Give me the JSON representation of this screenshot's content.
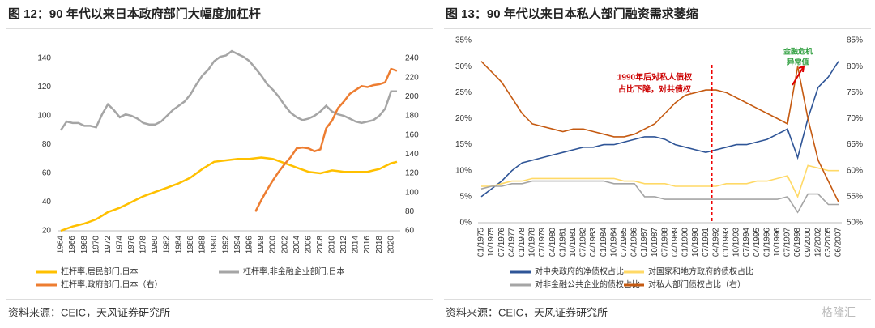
{
  "chart_data": [
    {
      "type": "line",
      "title": "图 12：90 年代以来日本政府部门大幅度加杠杆",
      "source": "资料来源：CEIC，天风证券研究所",
      "categories": [
        "1964",
        null,
        "1966",
        null,
        "1968",
        null,
        "1970",
        null,
        "1972",
        null,
        "1974",
        null,
        "1976",
        null,
        "1978",
        null,
        "1980",
        null,
        "1982",
        null,
        "1984",
        null,
        "1986",
        null,
        "1988",
        null,
        "1990",
        null,
        "1992",
        null,
        "1994",
        null,
        "1996",
        null,
        "1998",
        null,
        "2000",
        null,
        "2002",
        null,
        "2004",
        null,
        "2006",
        null,
        "2008",
        null,
        "2010",
        null,
        "2012",
        null,
        "2014",
        null,
        "2016",
        null,
        "2018",
        null,
        "2020",
        null
      ],
      "ylim": [
        20,
        140
      ],
      "yticks": [
        20,
        40,
        60,
        80,
        100,
        120,
        140
      ],
      "y2lim": [
        60,
        240
      ],
      "y2ticks": [
        60,
        80,
        100,
        120,
        140,
        160,
        180,
        200,
        220,
        240
      ],
      "series": [
        {
          "name": "杠杆率:居民部门:日本",
          "color": "#FFC000",
          "values": [
            20,
            21.5,
            23,
            24,
            25,
            26.5,
            28,
            30.5,
            33,
            34.5,
            36,
            38,
            40,
            42,
            44,
            45.5,
            47,
            48.5,
            50,
            51.5,
            53,
            55,
            57,
            60,
            63,
            65.5,
            68,
            68.5,
            69,
            69.5,
            70,
            70,
            70,
            70.5,
            71,
            70.5,
            70,
            68.5,
            67,
            65.5,
            64,
            62.5,
            61,
            60.5,
            60,
            61,
            62,
            61.5,
            61,
            61,
            61,
            61,
            61,
            62,
            63,
            65,
            67,
            68
          ]
        },
        {
          "name": "杠杆率:非金融企业部门:日本",
          "color": "#A5A5A5",
          "values": [
            90,
            96,
            95,
            95,
            93,
            93,
            92,
            101,
            108,
            104,
            99,
            101,
            100,
            98,
            95,
            94,
            94,
            96,
            100,
            104,
            107,
            110,
            115,
            122,
            128,
            132,
            138,
            141,
            142,
            145,
            143,
            141,
            138,
            133,
            128,
            122,
            118,
            113,
            107,
            102,
            99,
            97,
            98,
            100,
            103,
            107,
            103,
            101,
            100,
            98,
            96,
            95,
            96,
            97,
            100,
            105,
            117,
            117
          ]
        },
        {
          "name": "杠杆率:政府部门:日本（右）",
          "color": "#ED7D31",
          "axis": "y2",
          "values": [
            null,
            null,
            null,
            null,
            null,
            null,
            null,
            null,
            null,
            null,
            null,
            null,
            null,
            null,
            null,
            null,
            null,
            null,
            null,
            null,
            null,
            null,
            null,
            null,
            null,
            null,
            null,
            null,
            null,
            null,
            null,
            null,
            null,
            80,
            92,
            103,
            113,
            122,
            130,
            137,
            146,
            147,
            146,
            143,
            145,
            167,
            175,
            188,
            195,
            203,
            207,
            211,
            210,
            212,
            213,
            215,
            229,
            227
          ]
        }
      ]
    },
    {
      "type": "line",
      "title": "图 13：90 年代以来日本私人部门融资需求萎缩",
      "source": "资料来源：CEIC，天风证券研究所",
      "annotations": [
        "1990年后对私人债权",
        "占比下降，对共债权",
        "金融危机",
        "异常值"
      ],
      "watermark": "格隆汇",
      "categories": [
        "01/1975",
        "10/1975",
        "07/1976",
        "04/1977",
        "01/1978",
        "10/1978",
        "07/1979",
        "04/1980",
        "01/1981",
        "10/1981",
        "07/1982",
        "04/1983",
        "01/1984",
        "10/1984",
        "07/1985",
        "04/1986",
        "01/1987",
        "10/1987",
        "07/1988",
        "04/1989",
        "01/1990",
        "10/1990",
        "07/1991",
        "04/1992",
        "01/1993",
        "10/1993",
        "07/1994",
        "04/1995",
        "01/1996",
        "10/1996",
        "07/1997",
        "06/1998",
        "09/2000",
        "12/2002",
        "03/2005",
        "06/2007"
      ],
      "ylim": [
        0,
        35
      ],
      "yticks": [
        {
          "value": 0,
          "label": "0%"
        },
        {
          "value": 5,
          "label": "5%"
        },
        {
          "value": 10,
          "label": "10%"
        },
        {
          "value": 15,
          "label": "15%"
        },
        {
          "value": 20,
          "label": "20%"
        },
        {
          "value": 25,
          "label": "25%"
        },
        {
          "value": 30,
          "label": "30%"
        },
        {
          "value": 35,
          "label": "35%"
        }
      ],
      "y2lim": [
        50,
        85
      ],
      "y2ticks": [
        {
          "value": 50,
          "label": "50%"
        },
        {
          "value": 55,
          "label": "55%"
        },
        {
          "value": 60,
          "label": "60%"
        },
        {
          "value": 65,
          "label": "65%"
        },
        {
          "value": 70,
          "label": "70%"
        },
        {
          "value": 75,
          "label": "75%"
        },
        {
          "value": 80,
          "label": "80%"
        },
        {
          "value": 85,
          "label": "85%"
        }
      ],
      "series": [
        {
          "name": "对中央政府的净债权占比",
          "color": "#2F5597",
          "values": [
            5,
            6.5,
            8,
            10,
            11.5,
            12,
            12.5,
            13,
            13.5,
            14,
            14.5,
            14.5,
            15,
            15,
            15.5,
            16,
            16.5,
            16.5,
            16,
            15,
            14.5,
            14,
            13.5,
            14,
            14.5,
            15,
            15,
            15.5,
            16,
            17,
            18,
            12.5,
            20,
            26,
            28,
            31
          ]
        },
        {
          "name": "对国家和地方政府的债权占比",
          "color": "#FFD966",
          "values": [
            7,
            7,
            7.5,
            8,
            8,
            8.5,
            8.5,
            8.5,
            8.5,
            8.5,
            8.5,
            8.5,
            8.5,
            8.5,
            8,
            8,
            7.5,
            7.5,
            7.5,
            7,
            7,
            7,
            7,
            7,
            7.5,
            7.5,
            7.5,
            8,
            8,
            8.5,
            9,
            5,
            11,
            10.5,
            10,
            10
          ]
        },
        {
          "name": "对非金融公共企业的债权占比",
          "color": "#A5A5A5",
          "values": [
            6.5,
            7,
            7,
            7.5,
            7.5,
            8,
            8,
            8,
            8,
            8,
            8,
            8,
            8,
            7.5,
            7.5,
            7.5,
            5,
            5,
            4.5,
            4.5,
            4.5,
            4.5,
            4.5,
            4.5,
            4.5,
            4.5,
            4.5,
            4.5,
            4.5,
            4.5,
            5,
            2,
            5.5,
            5.5,
            3.5,
            3.5
          ]
        },
        {
          "name": "对私人部门债权占比（右）",
          "color": "#C55A11",
          "axis": "y2",
          "values": [
            81,
            79,
            77,
            74,
            71,
            69,
            68.5,
            68,
            67.5,
            68,
            68,
            67.5,
            67,
            66.5,
            66.5,
            67,
            68,
            69,
            71,
            73,
            74.5,
            75,
            75.5,
            75.5,
            75,
            74,
            73,
            72,
            71,
            70,
            69,
            80,
            70,
            62,
            58,
            54
          ]
        }
      ]
    }
  ]
}
